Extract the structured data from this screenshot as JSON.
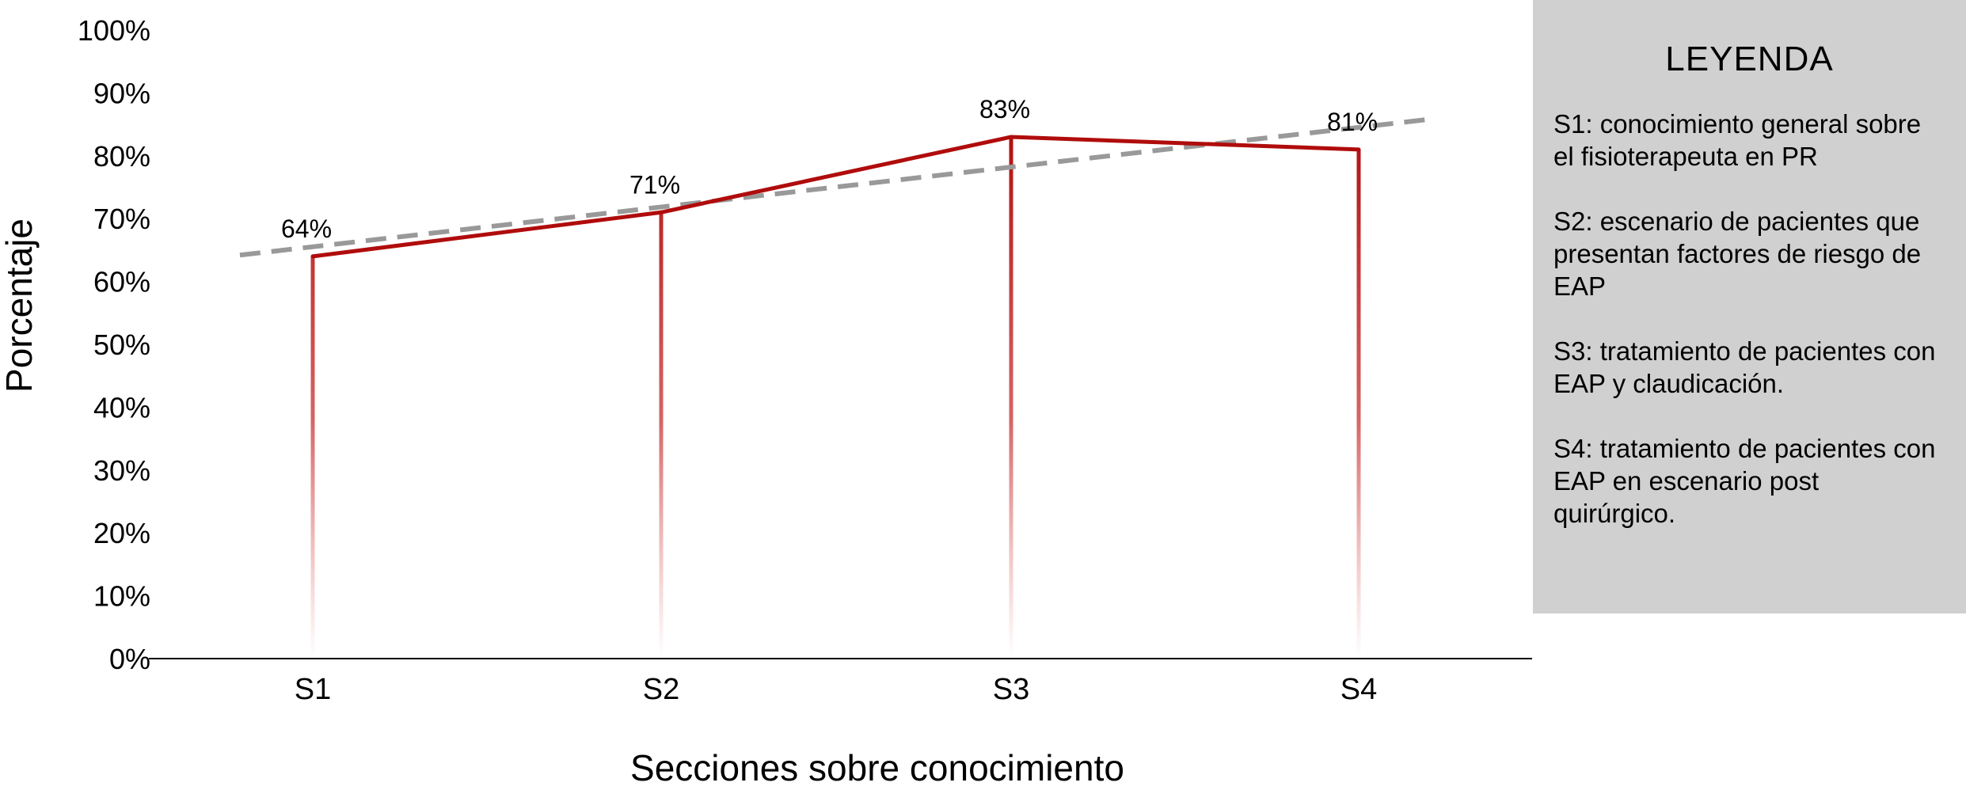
{
  "chart_data": {
    "type": "line",
    "title": "",
    "xlabel": "Secciones sobre conocimiento",
    "ylabel": "Porcentaje",
    "categories": [
      "S1",
      "S2",
      "S3",
      "S4"
    ],
    "series": [
      {
        "values": [
          64,
          71,
          83,
          81
        ],
        "color": "#b00c0c"
      }
    ],
    "data_labels": [
      "64%",
      "71%",
      "83%",
      "81%"
    ],
    "trendline": {
      "style": "dashed",
      "color": "#999999",
      "start": 64.2,
      "end": 85.8
    },
    "ylim": [
      0,
      100
    ],
    "yticks": [
      0,
      10,
      20,
      30,
      40,
      50,
      60,
      70,
      80,
      90,
      100
    ],
    "ytick_labels": [
      "0%",
      "10%",
      "20%",
      "30%",
      "40%",
      "50%",
      "60%",
      "70%",
      "80%",
      "90%",
      "100%"
    ],
    "grid": false,
    "drop_lines": true,
    "legend_position": "right"
  },
  "legend": {
    "title": "LEYENDA",
    "items": [
      "S1: conocimiento general sobre el fisioterapeuta en PR",
      "S2: escenario de pacientes que presentan factores de riesgo de EAP",
      "S3: tratamiento de pacientes con EAP y claudicación.",
      "S4: tratamiento de pacientes con EAP en escenario post quirúrgico."
    ]
  }
}
